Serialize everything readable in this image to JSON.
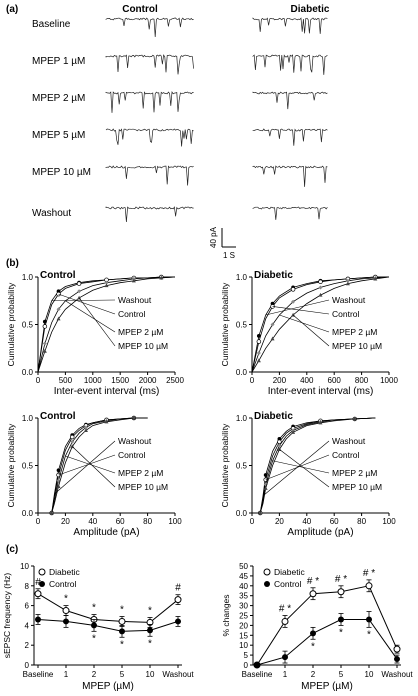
{
  "panel_a": {
    "label": "(a)",
    "col_control": "Control",
    "col_diabetic": "Diabetic",
    "rows": [
      "Baseline",
      "MPEP 1 µM",
      "MPEP 2 µM",
      "MPEP 5 µM",
      "MPEP 10 µM",
      "Washout"
    ],
    "scale_y": "40 pA",
    "scale_x": "1 S"
  },
  "panel_b": {
    "label": "(b)",
    "legend_labels": [
      "Washout",
      "Control",
      "MPEP 2 µM",
      "MPEP 10 µM"
    ],
    "ylabel": "Cumulative probability",
    "chart_data": [
      {
        "type": "line",
        "title": "Control",
        "xlabel": "Inter-event interval (ms)",
        "ylabel": "Cumulative probability",
        "x_ticks": [
          0,
          500,
          1000,
          1500,
          2000,
          2500
        ],
        "y_ticks": [
          0.0,
          0.5,
          1.0
        ],
        "xlim": [
          0,
          2500
        ],
        "ylim": [
          0,
          1
        ],
        "x": [
          0,
          125,
          250,
          375,
          500,
          750,
          1000,
          1250,
          1500,
          1750,
          2000,
          2250,
          2500
        ],
        "series": [
          {
            "values": [
              0,
              0.53,
              0.75,
              0.85,
              0.9,
              0.94,
              0.96,
              0.97,
              0.98,
              0.99,
              0.99,
              1.0,
              1.0
            ]
          },
          {
            "values": [
              0,
              0.48,
              0.71,
              0.82,
              0.88,
              0.93,
              0.95,
              0.97,
              0.98,
              0.99,
              0.99,
              1.0,
              1.0
            ]
          },
          {
            "values": [
              0,
              0.3,
              0.52,
              0.66,
              0.75,
              0.85,
              0.91,
              0.94,
              0.96,
              0.98,
              0.99,
              0.99,
              1.0
            ]
          },
          {
            "values": [
              0,
              0.22,
              0.42,
              0.56,
              0.66,
              0.78,
              0.86,
              0.91,
              0.94,
              0.96,
              0.98,
              0.99,
              1.0
            ]
          }
        ]
      },
      {
        "type": "line",
        "title": "Diabetic",
        "xlabel": "Inter-event interval (ms)",
        "ylabel": "Cumulative probability",
        "x_ticks": [
          0,
          200,
          400,
          600,
          800,
          1000
        ],
        "y_ticks": [
          0.0,
          0.5,
          1.0
        ],
        "xlim": [
          0,
          1000
        ],
        "ylim": [
          0,
          1
        ],
        "x": [
          0,
          50,
          100,
          150,
          200,
          300,
          400,
          500,
          600,
          700,
          800,
          900,
          1000
        ],
        "series": [
          {
            "values": [
              0,
              0.38,
              0.6,
              0.72,
              0.8,
              0.89,
              0.93,
              0.96,
              0.97,
              0.98,
              0.99,
              1.0,
              1.0
            ]
          },
          {
            "values": [
              0,
              0.32,
              0.56,
              0.69,
              0.78,
              0.87,
              0.92,
              0.95,
              0.97,
              0.98,
              0.99,
              1.0,
              1.0
            ]
          },
          {
            "values": [
              0,
              0.2,
              0.38,
              0.5,
              0.6,
              0.74,
              0.83,
              0.89,
              0.93,
              0.96,
              0.98,
              0.99,
              1.0
            ]
          },
          {
            "values": [
              0,
              0.12,
              0.25,
              0.35,
              0.45,
              0.6,
              0.72,
              0.81,
              0.88,
              0.93,
              0.96,
              0.98,
              1.0
            ]
          }
        ]
      },
      {
        "type": "line",
        "title": "Control",
        "xlabel": "Amplitude (pA)",
        "ylabel": "Cumulative probability",
        "x_ticks": [
          0,
          20,
          40,
          60,
          80,
          100
        ],
        "y_ticks": [
          0.0,
          0.5,
          1.0
        ],
        "xlim": [
          0,
          100
        ],
        "ylim": [
          0,
          1
        ],
        "x": [
          0,
          10,
          12,
          15,
          20,
          25,
          30,
          35,
          40,
          50,
          60,
          70,
          80
        ],
        "series": [
          {
            "values": [
              0,
              0,
              0.2,
              0.45,
              0.7,
              0.82,
              0.89,
              0.93,
              0.95,
              0.98,
              0.99,
              1.0,
              1.0
            ]
          },
          {
            "values": [
              0,
              0,
              0.17,
              0.4,
              0.66,
              0.8,
              0.87,
              0.92,
              0.95,
              0.98,
              0.99,
              1.0,
              1.0
            ]
          },
          {
            "values": [
              0,
              0,
              0.13,
              0.34,
              0.6,
              0.75,
              0.84,
              0.9,
              0.94,
              0.97,
              0.99,
              1.0,
              1.0
            ]
          },
          {
            "values": [
              0,
              0,
              0.1,
              0.28,
              0.53,
              0.7,
              0.8,
              0.87,
              0.92,
              0.96,
              0.98,
              1.0,
              1.0
            ]
          }
        ]
      },
      {
        "type": "line",
        "title": "Diabetic",
        "xlabel": "Amplitude (pA)",
        "ylabel": "Cumulative probability",
        "x_ticks": [
          0,
          20,
          40,
          60,
          80,
          100
        ],
        "y_ticks": [
          0.0,
          0.5,
          1.0
        ],
        "xlim": [
          0,
          100
        ],
        "ylim": [
          0,
          1
        ],
        "x": [
          0,
          6,
          8,
          10,
          15,
          20,
          25,
          30,
          40,
          50,
          60,
          75,
          90
        ],
        "series": [
          {
            "values": [
              0,
              0,
              0.18,
              0.4,
              0.65,
              0.78,
              0.86,
              0.91,
              0.95,
              0.97,
              0.98,
              0.99,
              1.0
            ]
          },
          {
            "values": [
              0,
              0,
              0.15,
              0.35,
              0.6,
              0.75,
              0.84,
              0.89,
              0.94,
              0.97,
              0.98,
              0.99,
              1.0
            ]
          },
          {
            "values": [
              0,
              0,
              0.12,
              0.3,
              0.55,
              0.71,
              0.81,
              0.87,
              0.93,
              0.96,
              0.98,
              0.99,
              1.0
            ]
          },
          {
            "values": [
              0,
              0,
              0.1,
              0.26,
              0.5,
              0.67,
              0.78,
              0.85,
              0.92,
              0.95,
              0.97,
              0.99,
              1.0
            ]
          }
        ]
      }
    ]
  },
  "panel_c": {
    "label": "(c)",
    "legend": [
      {
        "name": "Diabetic",
        "marker": "open"
      },
      {
        "name": "Control",
        "marker": "filled"
      }
    ],
    "chart_data": [
      {
        "type": "line",
        "xlabel": "MPEP (µM)",
        "ylabel": "sEPSC frequency (Hz)",
        "categories": [
          "Baseline",
          "1",
          "2",
          "5",
          "10",
          "Washout"
        ],
        "y_ticks": [
          0,
          2,
          4,
          6,
          8,
          10
        ],
        "ylim": [
          0,
          10
        ],
        "series": [
          {
            "name": "Diabetic",
            "values": [
              7.2,
              5.5,
              4.6,
              4.4,
              4.3,
              6.6
            ],
            "errors": [
              0.5,
              0.5,
              0.5,
              0.5,
              0.5,
              0.5
            ]
          },
          {
            "name": "Control",
            "values": [
              4.6,
              4.4,
              4.0,
              3.4,
              3.5,
              4.4
            ],
            "errors": [
              0.5,
              0.6,
              0.6,
              0.6,
              0.6,
              0.5
            ]
          }
        ],
        "annotations": [
          {
            "category": "Baseline",
            "text": "#"
          },
          {
            "category": "1",
            "text": "*"
          },
          {
            "category": "2",
            "text": "*"
          },
          {
            "category": "5",
            "text": "*"
          },
          {
            "category": "10",
            "text": "*"
          },
          {
            "category": "Washout",
            "text": "#"
          },
          {
            "category": "2",
            "text": "*"
          },
          {
            "category": "5",
            "text": "*"
          },
          {
            "category": "10",
            "text": "*"
          }
        ]
      },
      {
        "type": "line",
        "xlabel": "MPEP (µM)",
        "ylabel": "% changes",
        "categories": [
          "Baseline",
          "1",
          "2",
          "5",
          "10",
          "Washout"
        ],
        "y_ticks": [
          0,
          5,
          10,
          15,
          20,
          25,
          30,
          35,
          40,
          45,
          50
        ],
        "ylim": [
          0,
          50
        ],
        "series": [
          {
            "name": "Diabetic",
            "values": [
              0,
              22,
              36,
              37,
              40,
              8
            ],
            "errors": [
              0,
              3,
              3,
              3,
              3,
              2
            ]
          },
          {
            "name": "Control",
            "values": [
              0,
              4,
              16,
              23,
              23,
              3
            ],
            "errors": [
              0,
              3,
              3,
              3,
              4,
              2
            ]
          }
        ],
        "annotations": [
          {
            "category": "1",
            "text": "# *"
          },
          {
            "category": "2",
            "text": "# *"
          },
          {
            "category": "5",
            "text": "# *"
          },
          {
            "category": "10",
            "text": "# *"
          },
          {
            "category": "2",
            "text": "*"
          },
          {
            "category": "5",
            "text": "*"
          },
          {
            "category": "10",
            "text": "*"
          }
        ]
      }
    ]
  }
}
